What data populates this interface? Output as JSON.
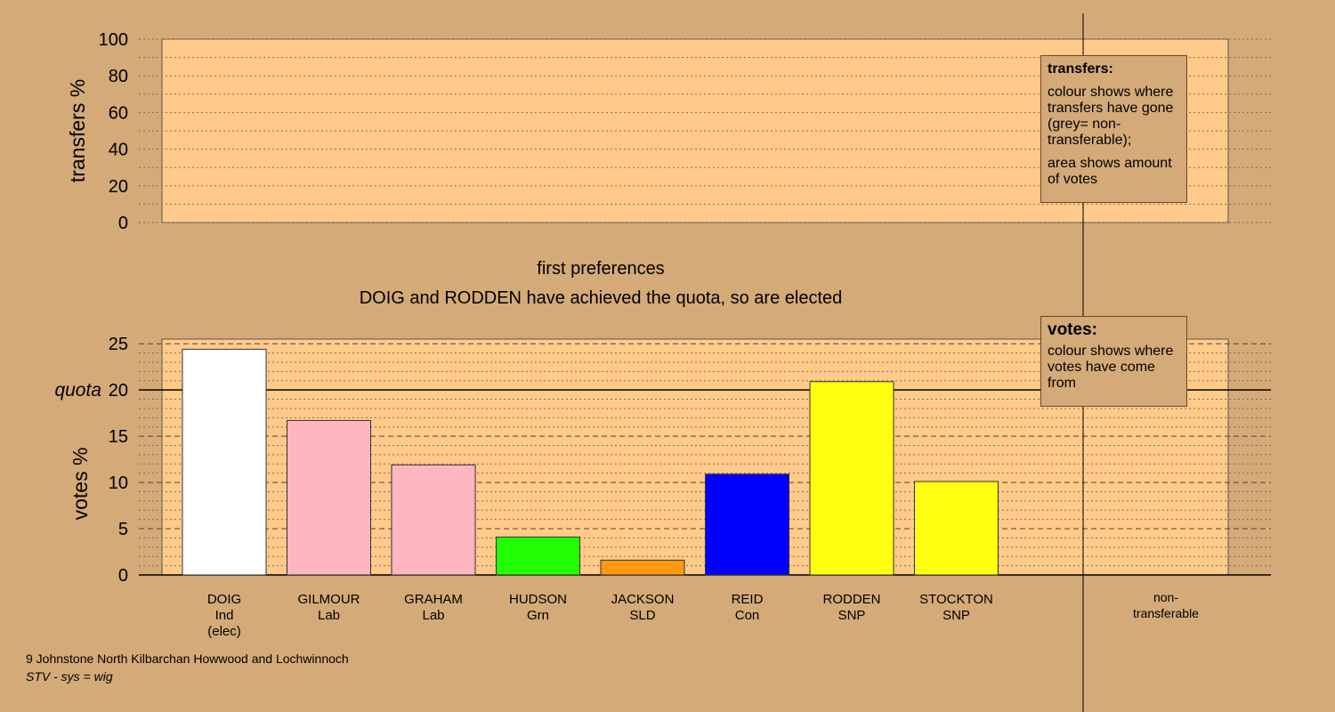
{
  "stage_title": "first preferences",
  "stage_message": "DOIG and RODDEN have achieved the quota, so are elected",
  "legend_transfers": {
    "title": "transfers:",
    "para1": "colour shows where transfers have gone (grey= non-transferable);",
    "para2": "area shows amount of votes"
  },
  "legend_votes": {
    "title": "votes:",
    "para1": "colour shows where votes have come from"
  },
  "footer": {
    "line1": "9 Johnstone North Kilbarchan Howwood and Lochwinnoch",
    "line2": "STV - sys = wig"
  },
  "colors": {
    "background": "#d4aa78",
    "plot_fill": "#ffca8a",
    "quota_line": "#000000"
  },
  "chart_data": [
    {
      "type": "bar",
      "name": "transfers",
      "ylabel": "transfers %",
      "ylim": [
        0,
        100
      ],
      "yticks": [
        0,
        20,
        40,
        60,
        80,
        100
      ],
      "categories": [],
      "values": []
    },
    {
      "type": "bar",
      "name": "votes",
      "ylabel": "votes %",
      "ylim": [
        0,
        25.5
      ],
      "yticks": [
        0,
        5,
        10,
        15,
        20,
        25
      ],
      "quota": 20,
      "quota_label": "quota",
      "categories": [
        [
          "DOIG",
          "Ind",
          "(elec)"
        ],
        [
          "GILMOUR",
          "Lab"
        ],
        [
          "GRAHAM",
          "Lab"
        ],
        [
          "HUDSON",
          "Grn"
        ],
        [
          "JACKSON",
          "SLD"
        ],
        [
          "REID",
          "Con"
        ],
        [
          "RODDEN",
          "SNP"
        ],
        [
          "STOCKTON",
          "SNP"
        ]
      ],
      "values": [
        24.4,
        16.7,
        11.9,
        4.1,
        1.6,
        10.9,
        20.9,
        10.1
      ],
      "colors": [
        "#ffffff",
        "#ffb6c1",
        "#ffb6c1",
        "#22ff00",
        "#ff9910",
        "#0000ff",
        "#ffff10",
        "#ffff10"
      ],
      "nontransferable_label": [
        "non-",
        "transferable"
      ]
    }
  ]
}
